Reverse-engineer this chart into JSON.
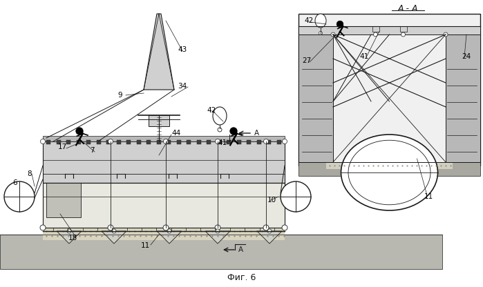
{
  "fig_label": "Фиг. 6",
  "section_label": "А - А",
  "bg_color": "#ffffff",
  "line_color": "#1a1a1a",
  "gray_fill": "#b8b8b8",
  "light_gray": "#d0d0d0",
  "dark_fill": "#909090",
  "ground_color": "#a0a0a0",
  "dotted_fill": "#c8c8c8"
}
